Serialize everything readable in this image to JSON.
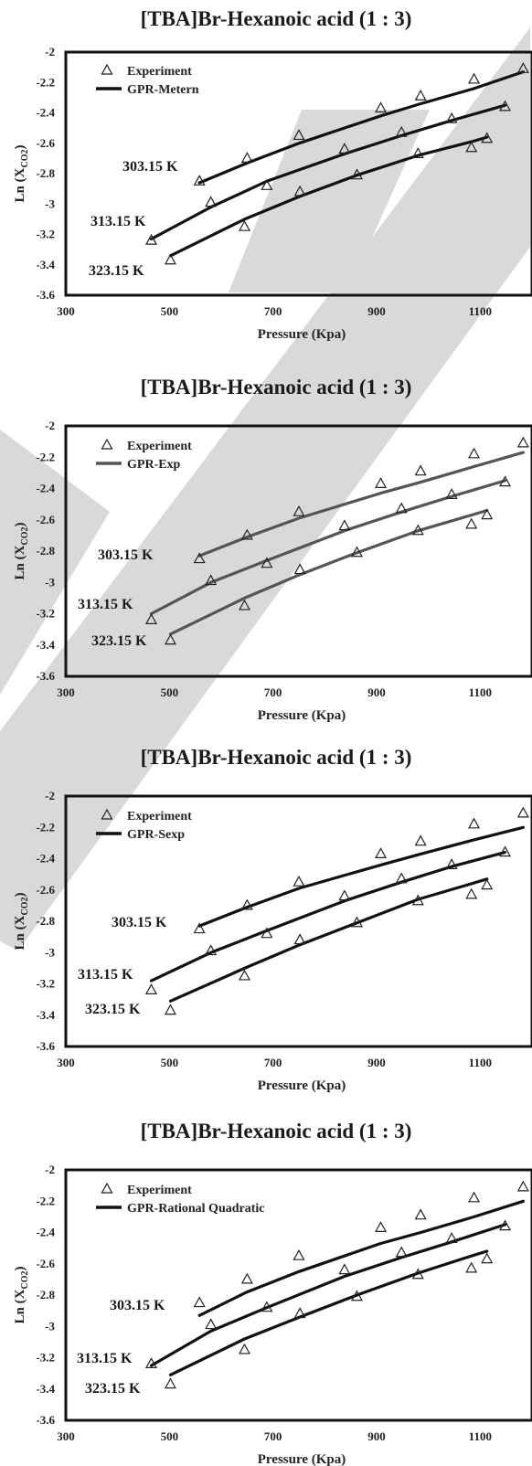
{
  "watermark_color": "#d9d9d9",
  "chart_data": [
    {
      "type": "line",
      "title": "[TBA]Br-Hexanoic acid (1 : 3)",
      "xlabel": "Pressure (Kpa)",
      "ylabel": "Ln (X",
      "ylabel_sub": "CO2",
      "ylabel_tail": ")",
      "xlim": [
        300,
        1200
      ],
      "ylim": [
        -3.6,
        -2
      ],
      "xticks": [
        "300",
        "500",
        "700",
        "900",
        "1100"
      ],
      "yticks": [
        "-2",
        "-2.2",
        "-2.4",
        "-2.6",
        "-2.8",
        "-3",
        "-3.2",
        "-3.4",
        "-3.6"
      ],
      "legend": {
        "marker_label": "Experiment",
        "line_label": "GPR-Metern",
        "line_color": "#111111",
        "placement": "top-left"
      },
      "temp_labels": [
        "303.15 K",
        "313.15 K",
        "323.15 K"
      ],
      "experiment": [
        {
          "name": "303.15 K",
          "x": [
            558,
            650,
            750,
            908,
            985,
            1088,
            1183
          ],
          "y": [
            -2.85,
            -2.7,
            -2.55,
            -2.37,
            -2.29,
            -2.18,
            -2.11
          ]
        },
        {
          "name": "313.15 K",
          "x": [
            465,
            580,
            688,
            838,
            948,
            1045,
            1148
          ],
          "y": [
            -3.24,
            -2.99,
            -2.88,
            -2.64,
            -2.53,
            -2.44,
            -2.36
          ]
        },
        {
          "name": "323.15 K",
          "x": [
            502,
            645,
            752,
            862,
            980,
            1083,
            1113
          ],
          "y": [
            -3.37,
            -3.15,
            -2.92,
            -2.81,
            -2.67,
            -2.63,
            -2.57
          ]
        }
      ],
      "fit": [
        {
          "name": "303.15 K",
          "x": [
            558,
            650,
            750,
            908,
            985,
            1088,
            1183
          ],
          "y": [
            -2.86,
            -2.73,
            -2.6,
            -2.42,
            -2.34,
            -2.24,
            -2.13
          ]
        },
        {
          "name": "313.15 K",
          "x": [
            465,
            580,
            688,
            838,
            948,
            1045,
            1148
          ],
          "y": [
            -3.23,
            -3.02,
            -2.85,
            -2.67,
            -2.55,
            -2.45,
            -2.35
          ]
        },
        {
          "name": "323.15 K",
          "x": [
            502,
            645,
            752,
            862,
            980,
            1083,
            1113
          ],
          "y": [
            -3.34,
            -3.1,
            -2.95,
            -2.81,
            -2.68,
            -2.59,
            -2.56
          ]
        }
      ]
    },
    {
      "type": "line",
      "title": "[TBA]Br-Hexanoic acid (1 : 3)",
      "xlabel": "Pressure (Kpa)",
      "ylabel": "Ln (X",
      "ylabel_sub": "CO2",
      "ylabel_tail": ")",
      "xlim": [
        300,
        1200
      ],
      "ylim": [
        -3.6,
        -2
      ],
      "xticks": [
        "300",
        "500",
        "700",
        "900",
        "1100"
      ],
      "yticks": [
        "-2",
        "-2.2",
        "-2.4",
        "-2.6",
        "-2.8",
        "-3",
        "-3.2",
        "-3.4",
        "-3.6"
      ],
      "legend": {
        "marker_label": "Experiment",
        "line_label": "GPR-Exp",
        "line_color": "#555555",
        "placement": "top-left"
      },
      "temp_labels": [
        "303.15 K",
        "313.15 K",
        "323.15 K"
      ],
      "experiment": [
        {
          "name": "303.15 K",
          "x": [
            558,
            650,
            750,
            908,
            985,
            1088,
            1183
          ],
          "y": [
            -2.85,
            -2.7,
            -2.55,
            -2.37,
            -2.29,
            -2.18,
            -2.11
          ]
        },
        {
          "name": "313.15 K",
          "x": [
            465,
            580,
            688,
            838,
            948,
            1045,
            1148
          ],
          "y": [
            -3.24,
            -2.99,
            -2.88,
            -2.64,
            -2.53,
            -2.44,
            -2.36
          ]
        },
        {
          "name": "323.15 K",
          "x": [
            502,
            645,
            752,
            862,
            980,
            1083,
            1113
          ],
          "y": [
            -3.37,
            -3.15,
            -2.92,
            -2.81,
            -2.67,
            -2.63,
            -2.57
          ]
        }
      ],
      "fit": [
        {
          "name": "303.15 K",
          "x": [
            558,
            650,
            750,
            908,
            985,
            1088,
            1183
          ],
          "y": [
            -2.83,
            -2.71,
            -2.59,
            -2.43,
            -2.36,
            -2.26,
            -2.17
          ]
        },
        {
          "name": "313.15 K",
          "x": [
            465,
            580,
            688,
            838,
            948,
            1045,
            1148
          ],
          "y": [
            -3.2,
            -3.0,
            -2.86,
            -2.67,
            -2.55,
            -2.45,
            -2.35
          ]
        },
        {
          "name": "323.15 K",
          "x": [
            502,
            645,
            752,
            862,
            980,
            1083,
            1113
          ],
          "y": [
            -3.33,
            -3.1,
            -2.95,
            -2.81,
            -2.67,
            -2.57,
            -2.54
          ]
        }
      ]
    },
    {
      "type": "line",
      "title": "[TBA]Br-Hexanoic acid (1 : 3)",
      "xlabel": "Pressure (Kpa)",
      "ylabel": "Ln (X",
      "ylabel_sub": "CO2",
      "ylabel_tail": ")",
      "xlim": [
        300,
        1200
      ],
      "ylim": [
        -3.6,
        -2
      ],
      "xticks": [
        "300",
        "500",
        "700",
        "900",
        "1100"
      ],
      "yticks": [
        "-2",
        "-2.2",
        "-2.4",
        "-2.6",
        "-2.8",
        "-3",
        "-3.2",
        "-3.4",
        "-3.6"
      ],
      "legend": {
        "marker_label": "Experiment",
        "line_label": "GPR-Sexp",
        "line_color": "#111111",
        "placement": "top-left"
      },
      "temp_labels": [
        "303.15 K",
        "313.15 K",
        "323.15 K"
      ],
      "experiment": [
        {
          "name": "303.15 K",
          "x": [
            558,
            650,
            750,
            908,
            985,
            1088,
            1183
          ],
          "y": [
            -2.85,
            -2.7,
            -2.55,
            -2.37,
            -2.29,
            -2.18,
            -2.11
          ]
        },
        {
          "name": "313.15 K",
          "x": [
            465,
            580,
            688,
            838,
            948,
            1045,
            1148
          ],
          "y": [
            -3.24,
            -2.99,
            -2.88,
            -2.64,
            -2.53,
            -2.44,
            -2.36
          ]
        },
        {
          "name": "323.15 K",
          "x": [
            502,
            645,
            752,
            862,
            980,
            1083,
            1113
          ],
          "y": [
            -3.37,
            -3.15,
            -2.92,
            -2.81,
            -2.67,
            -2.63,
            -2.57
          ]
        }
      ],
      "fit": [
        {
          "name": "303.15 K",
          "x": [
            558,
            650,
            750,
            908,
            985,
            1088,
            1183
          ],
          "y": [
            -2.83,
            -2.71,
            -2.59,
            -2.44,
            -2.37,
            -2.28,
            -2.2
          ]
        },
        {
          "name": "313.15 K",
          "x": [
            465,
            580,
            688,
            838,
            948,
            1045,
            1148
          ],
          "y": [
            -3.18,
            -3.0,
            -2.86,
            -2.67,
            -2.55,
            -2.45,
            -2.36
          ]
        },
        {
          "name": "323.15 K",
          "x": [
            502,
            645,
            752,
            862,
            980,
            1083,
            1113
          ],
          "y": [
            -3.31,
            -3.1,
            -2.95,
            -2.81,
            -2.66,
            -2.56,
            -2.53
          ]
        }
      ]
    },
    {
      "type": "line",
      "title": "[TBA]Br-Hexanoic acid (1 : 3)",
      "xlabel": "Pressure (Kpa)",
      "ylabel": "Ln (X",
      "ylabel_sub": "CO2",
      "ylabel_tail": ")",
      "xlim": [
        300,
        1200
      ],
      "ylim": [
        -3.6,
        -2
      ],
      "xticks": [
        "300",
        "500",
        "700",
        "900",
        "1100"
      ],
      "yticks": [
        "-2",
        "-2.2",
        "-2.4",
        "-2.6",
        "-2.8",
        "-3",
        "-3.2",
        "-3.4",
        "-3.6"
      ],
      "legend": {
        "marker_label": "Experiment",
        "line_label": "GPR-Rational Quadratic",
        "line_color": "#111111",
        "placement": "top-left"
      },
      "temp_labels": [
        "303.15 K",
        "313.15 K",
        "323.15 K"
      ],
      "experiment": [
        {
          "name": "303.15 K",
          "x": [
            558,
            650,
            750,
            908,
            985,
            1088,
            1183
          ],
          "y": [
            -2.85,
            -2.7,
            -2.55,
            -2.37,
            -2.29,
            -2.18,
            -2.11
          ]
        },
        {
          "name": "313.15 K",
          "x": [
            465,
            580,
            688,
            838,
            948,
            1045,
            1148
          ],
          "y": [
            -3.24,
            -2.99,
            -2.88,
            -2.64,
            -2.53,
            -2.44,
            -2.36
          ]
        },
        {
          "name": "323.15 K",
          "x": [
            502,
            645,
            752,
            862,
            980,
            1083,
            1113
          ],
          "y": [
            -3.37,
            -3.15,
            -2.92,
            -2.81,
            -2.67,
            -2.63,
            -2.57
          ]
        }
      ],
      "fit": [
        {
          "name": "303.15 K",
          "x": [
            558,
            650,
            750,
            908,
            985,
            1088,
            1183
          ],
          "y": [
            -2.93,
            -2.78,
            -2.65,
            -2.47,
            -2.4,
            -2.3,
            -2.2
          ]
        },
        {
          "name": "313.15 K",
          "x": [
            465,
            580,
            688,
            838,
            948,
            1045,
            1148
          ],
          "y": [
            -3.25,
            -3.03,
            -2.88,
            -2.68,
            -2.56,
            -2.46,
            -2.35
          ]
        },
        {
          "name": "323.15 K",
          "x": [
            502,
            645,
            752,
            862,
            980,
            1083,
            1113
          ],
          "y": [
            -3.31,
            -3.08,
            -2.94,
            -2.8,
            -2.66,
            -2.55,
            -2.52
          ]
        }
      ]
    }
  ]
}
